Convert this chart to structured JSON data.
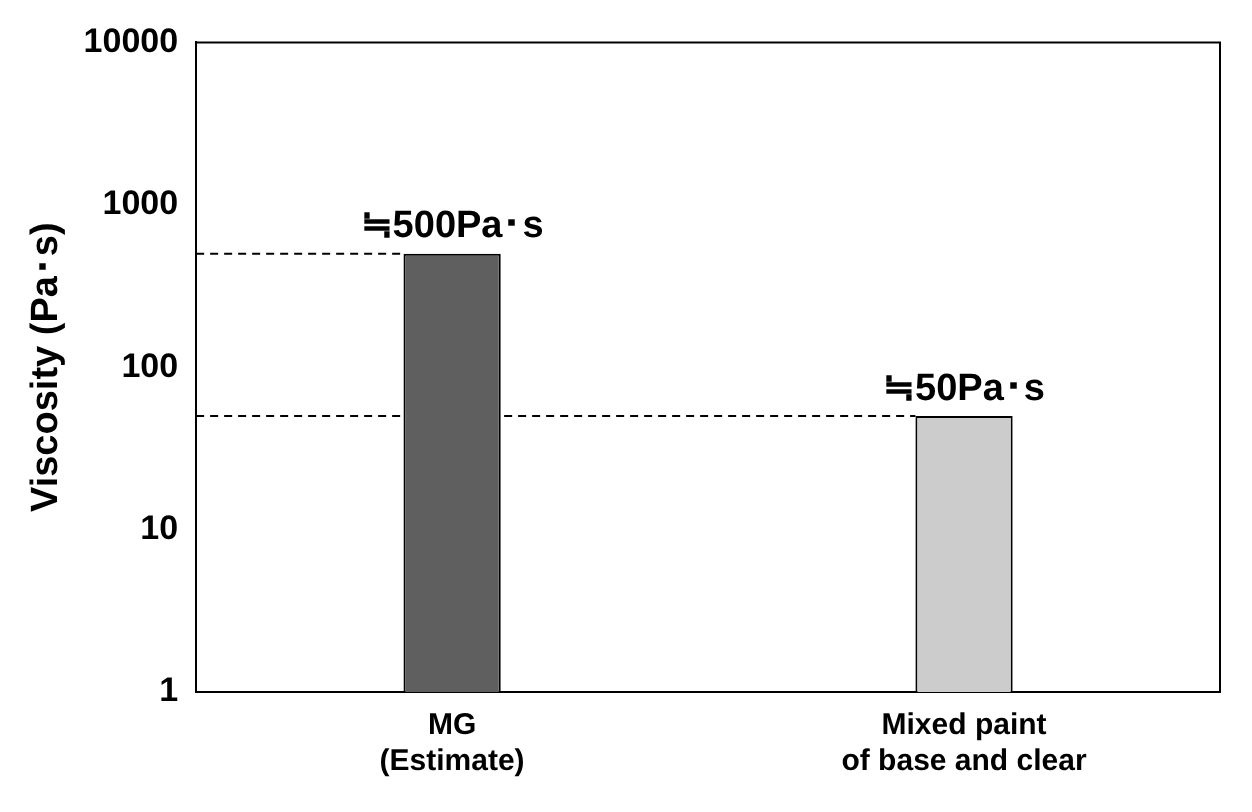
{
  "chart_data": {
    "type": "bar",
    "ylabel": "Viscosity (Pa･s)",
    "categories": [
      "MG\n(Estimate)",
      "Mixed paint\nof base and clear"
    ],
    "values": [
      500,
      50
    ],
    "colors": [
      "#5f5f5f",
      "#cccccc"
    ],
    "value_labels": [
      "≒500Pa･s",
      "≒50Pa･s"
    ],
    "log": true,
    "ylim": [
      1,
      10000
    ],
    "yticks": [
      1,
      10,
      100,
      1000,
      10000
    ],
    "grid": false,
    "legend": false,
    "ref_lines": [
      {
        "axis": "y",
        "value": 500,
        "color": "#000000",
        "line_style": "dashed"
      },
      {
        "axis": "y",
        "value": 50,
        "color": "#000000",
        "line_style": "dashed"
      }
    ]
  }
}
